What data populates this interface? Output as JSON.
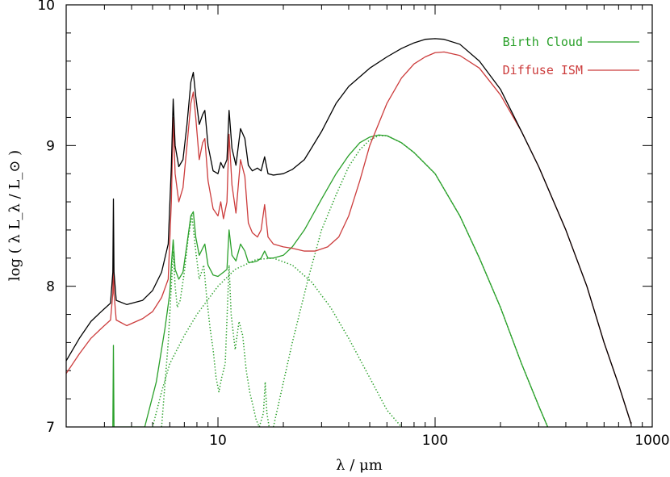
{
  "chart_data": {
    "type": "line",
    "xscale": "log",
    "xlim": [
      2,
      1000
    ],
    "ylim": [
      7,
      10
    ],
    "xlabel": "λ / μm",
    "ylabel": "log ( λ L_λ / L_⊙ )",
    "x_tick_labels": [
      {
        "value": 10,
        "label": "10"
      },
      {
        "value": 100,
        "label": "100"
      },
      {
        "value": 1000,
        "label": "1000"
      }
    ],
    "y_tick_labels": [
      {
        "value": 7,
        "label": "7"
      },
      {
        "value": 8,
        "label": "8"
      },
      {
        "value": 9,
        "label": "9"
      },
      {
        "value": 10,
        "label": "10"
      }
    ],
    "legend_position": "top-right",
    "series": [
      {
        "key": "total",
        "color": "#000000",
        "style": "solid",
        "points": [
          [
            2,
            7.47
          ],
          [
            2.3,
            7.63
          ],
          [
            2.6,
            7.75
          ],
          [
            2.9,
            7.82
          ],
          [
            3.2,
            7.88
          ],
          [
            3.28,
            8.1
          ],
          [
            3.3,
            8.62
          ],
          [
            3.32,
            8.1
          ],
          [
            3.4,
            7.9
          ],
          [
            3.8,
            7.87
          ],
          [
            4.5,
            7.9
          ],
          [
            5.0,
            7.97
          ],
          [
            5.5,
            8.1
          ],
          [
            5.9,
            8.3
          ],
          [
            6.1,
            8.85
          ],
          [
            6.22,
            9.33
          ],
          [
            6.35,
            9.0
          ],
          [
            6.6,
            8.85
          ],
          [
            6.9,
            8.9
          ],
          [
            7.2,
            9.15
          ],
          [
            7.5,
            9.45
          ],
          [
            7.7,
            9.52
          ],
          [
            7.9,
            9.35
          ],
          [
            8.2,
            9.15
          ],
          [
            8.5,
            9.22
          ],
          [
            8.7,
            9.25
          ],
          [
            9.0,
            9.0
          ],
          [
            9.5,
            8.82
          ],
          [
            10.0,
            8.8
          ],
          [
            10.3,
            8.88
          ],
          [
            10.6,
            8.84
          ],
          [
            11.0,
            8.9
          ],
          [
            11.25,
            9.25
          ],
          [
            11.6,
            8.98
          ],
          [
            12.1,
            8.86
          ],
          [
            12.7,
            9.12
          ],
          [
            13.3,
            9.05
          ],
          [
            13.8,
            8.86
          ],
          [
            14.4,
            8.82
          ],
          [
            15.2,
            8.84
          ],
          [
            15.8,
            8.82
          ],
          [
            16.4,
            8.92
          ],
          [
            17.0,
            8.8
          ],
          [
            18,
            8.79
          ],
          [
            20,
            8.8
          ],
          [
            22,
            8.83
          ],
          [
            25,
            8.9
          ],
          [
            30,
            9.1
          ],
          [
            35,
            9.3
          ],
          [
            40,
            9.42
          ],
          [
            50,
            9.55
          ],
          [
            60,
            9.63
          ],
          [
            70,
            9.69
          ],
          [
            80,
            9.73
          ],
          [
            90,
            9.755
          ],
          [
            100,
            9.76
          ],
          [
            110,
            9.755
          ],
          [
            130,
            9.72
          ],
          [
            160,
            9.6
          ],
          [
            200,
            9.4
          ],
          [
            250,
            9.1
          ],
          [
            300,
            8.85
          ],
          [
            400,
            8.4
          ],
          [
            500,
            8.0
          ],
          [
            600,
            7.6
          ],
          [
            700,
            7.3
          ],
          [
            800,
            7.02
          ]
        ]
      },
      {
        "key": "diffuse_ism",
        "name": "Diffuse ISM",
        "color": "#cc3c3c",
        "style": "solid",
        "points": [
          [
            2,
            7.38
          ],
          [
            2.3,
            7.52
          ],
          [
            2.6,
            7.63
          ],
          [
            2.9,
            7.7
          ],
          [
            3.2,
            7.76
          ],
          [
            3.28,
            7.95
          ],
          [
            3.3,
            8.33
          ],
          [
            3.32,
            7.95
          ],
          [
            3.4,
            7.76
          ],
          [
            3.8,
            7.72
          ],
          [
            4.5,
            7.77
          ],
          [
            5.0,
            7.82
          ],
          [
            5.5,
            7.92
          ],
          [
            5.9,
            8.05
          ],
          [
            6.1,
            8.6
          ],
          [
            6.22,
            9.2
          ],
          [
            6.35,
            8.8
          ],
          [
            6.6,
            8.6
          ],
          [
            6.9,
            8.7
          ],
          [
            7.2,
            9.0
          ],
          [
            7.5,
            9.3
          ],
          [
            7.7,
            9.38
          ],
          [
            7.9,
            9.2
          ],
          [
            8.2,
            8.9
          ],
          [
            8.5,
            9.02
          ],
          [
            8.7,
            9.05
          ],
          [
            9.0,
            8.75
          ],
          [
            9.5,
            8.55
          ],
          [
            10.0,
            8.5
          ],
          [
            10.3,
            8.6
          ],
          [
            10.6,
            8.48
          ],
          [
            11.0,
            8.6
          ],
          [
            11.25,
            9.08
          ],
          [
            11.6,
            8.72
          ],
          [
            12.1,
            8.52
          ],
          [
            12.7,
            8.9
          ],
          [
            13.3,
            8.78
          ],
          [
            13.8,
            8.45
          ],
          [
            14.4,
            8.38
          ],
          [
            15.2,
            8.35
          ],
          [
            15.8,
            8.4
          ],
          [
            16.4,
            8.58
          ],
          [
            17.0,
            8.35
          ],
          [
            18,
            8.3
          ],
          [
            20,
            8.28
          ],
          [
            22,
            8.27
          ],
          [
            25,
            8.25
          ],
          [
            28,
            8.25
          ],
          [
            32,
            8.28
          ],
          [
            36,
            8.35
          ],
          [
            40,
            8.5
          ],
          [
            45,
            8.75
          ],
          [
            50,
            9.0
          ],
          [
            60,
            9.3
          ],
          [
            70,
            9.48
          ],
          [
            80,
            9.58
          ],
          [
            90,
            9.63
          ],
          [
            100,
            9.66
          ],
          [
            110,
            9.665
          ],
          [
            130,
            9.64
          ],
          [
            160,
            9.55
          ],
          [
            200,
            9.36
          ],
          [
            250,
            9.1
          ],
          [
            300,
            8.85
          ],
          [
            400,
            8.4
          ],
          [
            500,
            8.0
          ],
          [
            600,
            7.6
          ],
          [
            700,
            7.3
          ],
          [
            800,
            7.02
          ]
        ]
      },
      {
        "key": "birth_cloud",
        "name": "Birth Cloud",
        "color": "#2aa02a",
        "style": "solid",
        "points": [
          [
            3.28,
            7.0
          ],
          [
            3.3,
            7.58
          ],
          [
            3.32,
            7.0
          ],
          [
            4.6,
            7.0
          ],
          [
            5.2,
            7.32
          ],
          [
            5.7,
            7.7
          ],
          [
            6.0,
            7.95
          ],
          [
            6.1,
            8.15
          ],
          [
            6.22,
            8.33
          ],
          [
            6.35,
            8.12
          ],
          [
            6.6,
            8.05
          ],
          [
            6.9,
            8.1
          ],
          [
            7.2,
            8.3
          ],
          [
            7.5,
            8.5
          ],
          [
            7.7,
            8.53
          ],
          [
            7.9,
            8.35
          ],
          [
            8.2,
            8.22
          ],
          [
            8.5,
            8.27
          ],
          [
            8.7,
            8.3
          ],
          [
            9.0,
            8.15
          ],
          [
            9.5,
            8.08
          ],
          [
            10.0,
            8.07
          ],
          [
            10.6,
            8.1
          ],
          [
            11.0,
            8.12
          ],
          [
            11.25,
            8.4
          ],
          [
            11.6,
            8.22
          ],
          [
            12.1,
            8.18
          ],
          [
            12.7,
            8.3
          ],
          [
            13.3,
            8.25
          ],
          [
            13.8,
            8.17
          ],
          [
            14.4,
            8.17
          ],
          [
            15.2,
            8.18
          ],
          [
            15.8,
            8.2
          ],
          [
            16.4,
            8.25
          ],
          [
            17.0,
            8.2
          ],
          [
            18,
            8.2
          ],
          [
            20,
            8.22
          ],
          [
            22,
            8.28
          ],
          [
            25,
            8.4
          ],
          [
            30,
            8.62
          ],
          [
            35,
            8.8
          ],
          [
            40,
            8.93
          ],
          [
            45,
            9.02
          ],
          [
            50,
            9.06
          ],
          [
            55,
            9.075
          ],
          [
            60,
            9.07
          ],
          [
            70,
            9.02
          ],
          [
            80,
            8.95
          ],
          [
            100,
            8.8
          ],
          [
            130,
            8.5
          ],
          [
            160,
            8.2
          ],
          [
            200,
            7.85
          ],
          [
            250,
            7.45
          ],
          [
            300,
            7.15
          ],
          [
            330,
            7.0
          ]
        ]
      },
      {
        "key": "birth_cloud_pah",
        "color": "#2aa02a",
        "style": "dotted",
        "points": [
          [
            5.5,
            7.0
          ],
          [
            5.9,
            7.6
          ],
          [
            6.1,
            8.0
          ],
          [
            6.22,
            8.25
          ],
          [
            6.35,
            8.0
          ],
          [
            6.5,
            7.85
          ],
          [
            6.7,
            7.9
          ],
          [
            7.0,
            8.1
          ],
          [
            7.3,
            8.35
          ],
          [
            7.6,
            8.5
          ],
          [
            7.9,
            8.25
          ],
          [
            8.2,
            8.05
          ],
          [
            8.6,
            8.15
          ],
          [
            8.9,
            7.9
          ],
          [
            9.2,
            7.7
          ],
          [
            9.5,
            7.55
          ],
          [
            9.8,
            7.35
          ],
          [
            10.1,
            7.25
          ],
          [
            10.4,
            7.35
          ],
          [
            10.8,
            7.45
          ],
          [
            11.25,
            8.15
          ],
          [
            11.5,
            7.8
          ],
          [
            12.0,
            7.55
          ],
          [
            12.5,
            7.75
          ],
          [
            13.0,
            7.65
          ],
          [
            13.5,
            7.4
          ],
          [
            14.0,
            7.25
          ],
          [
            14.5,
            7.15
          ],
          [
            15.0,
            7.05
          ],
          [
            15.5,
            7.0
          ],
          [
            16.2,
            7.1
          ],
          [
            16.5,
            7.32
          ],
          [
            16.8,
            7.1
          ],
          [
            17.2,
            7.0
          ]
        ]
      },
      {
        "key": "birth_cloud_warm",
        "color": "#2aa02a",
        "style": "dotted",
        "points": [
          [
            5.0,
            7.0
          ],
          [
            5.5,
            7.25
          ],
          [
            6.0,
            7.45
          ],
          [
            7,
            7.65
          ],
          [
            8,
            7.8
          ],
          [
            10,
            8.0
          ],
          [
            12,
            8.12
          ],
          [
            15,
            8.19
          ],
          [
            18,
            8.2
          ],
          [
            22,
            8.15
          ],
          [
            27,
            8.03
          ],
          [
            33,
            7.85
          ],
          [
            40,
            7.63
          ],
          [
            50,
            7.35
          ],
          [
            60,
            7.12
          ],
          [
            70,
            7.0
          ]
        ]
      },
      {
        "key": "birth_cloud_cold",
        "color": "#2aa02a",
        "style": "dotted",
        "points": [
          [
            18,
            7.0
          ],
          [
            22,
            7.6
          ],
          [
            26,
            8.05
          ],
          [
            30,
            8.4
          ],
          [
            35,
            8.65
          ],
          [
            40,
            8.85
          ],
          [
            45,
            8.97
          ],
          [
            50,
            9.04
          ],
          [
            55,
            9.07
          ],
          [
            60,
            9.07
          ],
          [
            70,
            9.02
          ],
          [
            80,
            8.95
          ],
          [
            100,
            8.8
          ],
          [
            130,
            8.5
          ],
          [
            160,
            8.2
          ],
          [
            200,
            7.85
          ],
          [
            250,
            7.45
          ],
          [
            300,
            7.15
          ],
          [
            330,
            7.0
          ]
        ]
      }
    ],
    "legend": [
      {
        "label": "Birth Cloud",
        "color": "#2aa02a"
      },
      {
        "label": "Diffuse ISM",
        "color": "#cc3c3c"
      }
    ]
  }
}
